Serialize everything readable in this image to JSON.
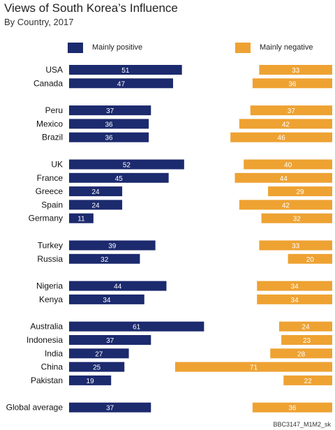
{
  "title": "Views of South Korea’s Influence",
  "subtitle": "By Country, 2017",
  "footnote": "BBC3147_M1M2_sk",
  "colors": {
    "positive": "#1c2a6e",
    "negative": "#eea232",
    "label_text": "#ffffff",
    "country_text": "#111111"
  },
  "chart_data": {
    "type": "bar",
    "legend_position": "top",
    "grid": false,
    "categories": [
      "USA",
      "Canada",
      "Peru",
      "Mexico",
      "Brazil",
      "UK",
      "France",
      "Greece",
      "Spain",
      "Germany",
      "Turkey",
      "Russia",
      "Nigeria",
      "Kenya",
      "Australia",
      "Indonesia",
      "India",
      "China",
      "Pakistan",
      "Global average"
    ],
    "groups": [
      [
        0,
        1
      ],
      [
        2,
        3,
        4
      ],
      [
        5,
        6,
        7,
        8,
        9
      ],
      [
        10,
        11
      ],
      [
        12,
        13
      ],
      [
        14,
        15,
        16,
        17,
        18
      ],
      [
        19
      ]
    ],
    "series": [
      {
        "name": "Mainly positive",
        "values": [
          51,
          47,
          37,
          36,
          36,
          52,
          45,
          24,
          24,
          11,
          39,
          32,
          44,
          34,
          61,
          37,
          27,
          25,
          19,
          37
        ]
      },
      {
        "name": "Mainly negative",
        "values": [
          33,
          36,
          37,
          42,
          46,
          40,
          44,
          29,
          42,
          32,
          33,
          20,
          34,
          34,
          24,
          23,
          28,
          71,
          22,
          36
        ]
      }
    ]
  }
}
